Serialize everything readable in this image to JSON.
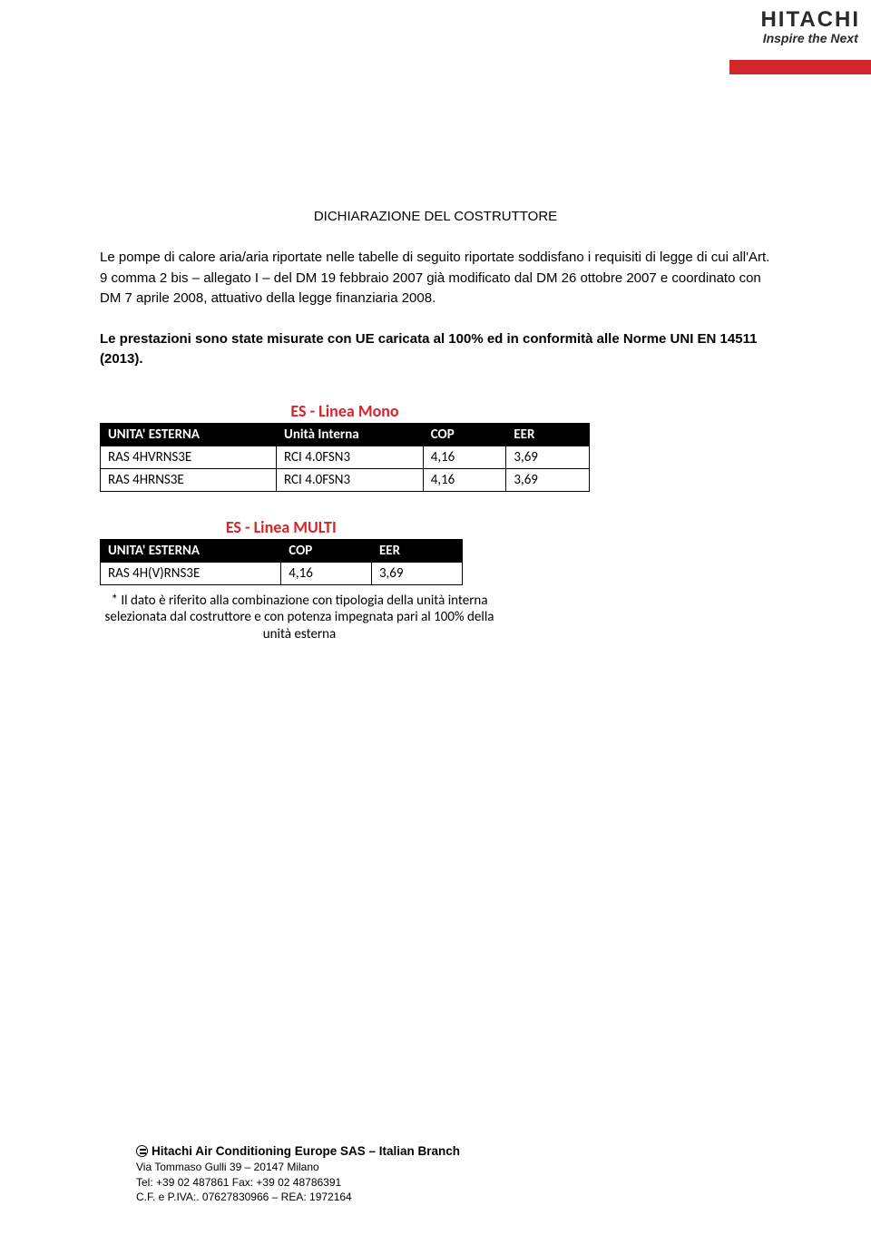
{
  "logo": {
    "brand": "HITACHI",
    "tagline": "Inspire the Next",
    "accent_color": "#d2262a",
    "text_color": "#2a2a2a"
  },
  "title": "DICHIARAZIONE DEL COSTRUTTORE",
  "paragraphs": {
    "p1": "Le pompe di calore aria/aria riportate nelle tabelle di seguito riportate soddisfano i requisiti di legge di cui all'Art. 9 comma 2 bis – allegato I – del DM 19 febbraio 2007 già modificato dal DM 26 ottobre 2007 e coordinato con DM 7 aprile 2008, attuativo della legge finanziaria 2008.",
    "p2": "Le prestazioni sono state misurate con UE caricata al 100% ed in conformità alle Norme UNI EN 14511 (2013)."
  },
  "table_mono": {
    "title": "ES - Linea Mono",
    "title_color": "#d2262a",
    "header_bg": "#000000",
    "header_fg": "#ffffff",
    "border_color": "#000000",
    "columns": [
      "UNITA' ESTERNA",
      "Unità Interna",
      "COP",
      "EER"
    ],
    "rows": [
      [
        "RAS 4HVRNS3E",
        "RCI 4.0FSN3",
        "4,16",
        "3,69"
      ],
      [
        "RAS 4HRNS3E",
        "RCI 4.0FSN3",
        "4,16",
        "3,69"
      ]
    ]
  },
  "table_multi": {
    "title": "ES  - Linea MULTI",
    "title_color": "#d2262a",
    "header_bg": "#000000",
    "header_fg": "#ffffff",
    "border_color": "#000000",
    "columns": [
      "UNITA' ESTERNA",
      "COP",
      "EER"
    ],
    "rows": [
      [
        "RAS 4H(V)RNS3E",
        "4,16",
        "3,69"
      ]
    ]
  },
  "footnote": "* Il dato è riferito alla combinazione con tipologia della unità interna selezionata dal costruttore e con potenza impegnata pari al 100% della unità esterna",
  "footer": {
    "company": "Hitachi Air Conditioning Europe SAS – Italian Branch",
    "address": "Via Tommaso Gulli 39 – 20147 Milano",
    "phones": "Tel: +39 02 487861 Fax: +39 02 48786391",
    "fiscal": "C.F. e P.IVA:. 07627830966 – REA: 1972164"
  }
}
